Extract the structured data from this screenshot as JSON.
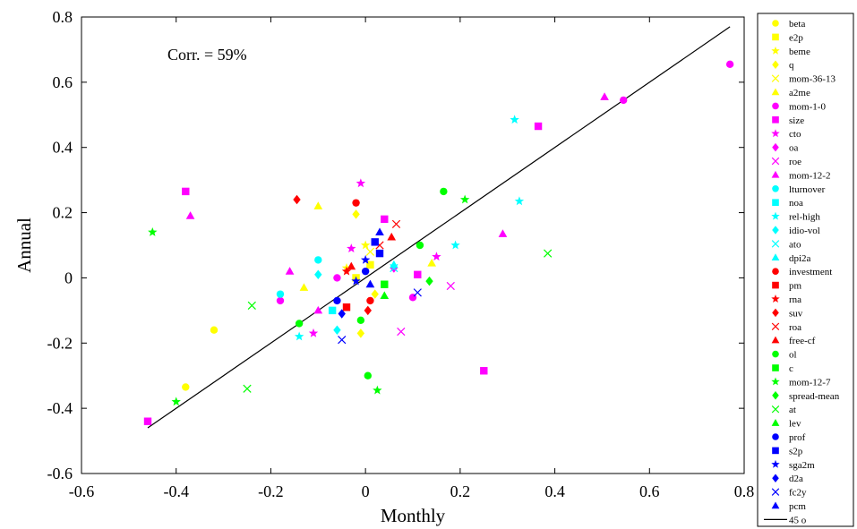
{
  "chart_data": {
    "type": "scatter",
    "xlabel": "Monthly",
    "ylabel": "Annual",
    "xlim": [
      -0.6,
      0.8
    ],
    "ylim": [
      -0.6,
      0.8
    ],
    "x_ticks": [
      "-0.6",
      "-0.4",
      "-0.2",
      "0",
      "0.2",
      "0.4",
      "0.6",
      "0.8"
    ],
    "y_ticks": [
      "-0.6",
      "-0.4",
      "-0.2",
      "0",
      "0.2",
      "0.4",
      "0.6",
      "0.8"
    ],
    "grid": false,
    "legend_placement": "outside-right",
    "annotation": "Corr. = 59%",
    "reference_line": {
      "label": "45 o",
      "from": [
        -0.46,
        -0.46
      ],
      "to": [
        0.77,
        0.77
      ],
      "color": "#000000"
    },
    "series": [
      {
        "name": "beta",
        "color": "#ffff00",
        "marker": "circle",
        "points": [
          [
            -0.38,
            -0.335
          ],
          [
            -0.32,
            -0.16
          ]
        ]
      },
      {
        "name": "e2p",
        "color": "#ffff00",
        "marker": "square",
        "points": [
          [
            -0.02,
            0.0
          ],
          [
            0.01,
            0.04
          ]
        ]
      },
      {
        "name": "beme",
        "color": "#ffff00",
        "marker": "star",
        "points": [
          [
            -0.04,
            0.03
          ],
          [
            0.0,
            0.1
          ]
        ]
      },
      {
        "name": "q",
        "color": "#ffff00",
        "marker": "diamond",
        "points": [
          [
            -0.02,
            0.195
          ],
          [
            -0.01,
            -0.17
          ],
          [
            0.02,
            -0.05
          ]
        ]
      },
      {
        "name": "mom-36-13",
        "color": "#ffff00",
        "marker": "x",
        "points": [
          [
            0.01,
            0.08
          ]
        ]
      },
      {
        "name": "a2me",
        "color": "#ffff00",
        "marker": "triangle",
        "points": [
          [
            -0.1,
            0.22
          ],
          [
            -0.13,
            -0.03
          ],
          [
            0.14,
            0.045
          ]
        ]
      },
      {
        "name": "mom-1-0",
        "color": "#ff00ff",
        "marker": "circle",
        "points": [
          [
            0.77,
            0.655
          ],
          [
            0.545,
            0.545
          ],
          [
            -0.18,
            -0.07
          ],
          [
            0.1,
            -0.06
          ],
          [
            -0.06,
            0.0
          ]
        ]
      },
      {
        "name": "size",
        "color": "#ff00ff",
        "marker": "square",
        "points": [
          [
            0.365,
            0.465
          ],
          [
            -0.38,
            0.265
          ],
          [
            -0.46,
            -0.44
          ],
          [
            0.25,
            -0.285
          ],
          [
            0.11,
            0.01
          ],
          [
            0.04,
            0.18
          ]
        ]
      },
      {
        "name": "cto",
        "color": "#ff00ff",
        "marker": "star",
        "points": [
          [
            -0.11,
            -0.17
          ],
          [
            0.15,
            0.065
          ],
          [
            -0.01,
            0.29
          ],
          [
            -0.03,
            0.09
          ]
        ]
      },
      {
        "name": "oa",
        "color": "#ff00ff",
        "marker": "diamond",
        "points": [
          [
            0.06,
            0.03
          ]
        ]
      },
      {
        "name": "roe",
        "color": "#ff00ff",
        "marker": "x",
        "points": [
          [
            0.18,
            -0.025
          ],
          [
            0.075,
            -0.165
          ]
        ]
      },
      {
        "name": "mom-12-2",
        "color": "#ff00ff",
        "marker": "triangle",
        "points": [
          [
            0.505,
            0.555
          ],
          [
            -0.37,
            0.19
          ],
          [
            0.29,
            0.135
          ],
          [
            -0.16,
            0.02
          ],
          [
            -0.1,
            -0.1
          ]
        ]
      },
      {
        "name": "lturnover",
        "color": "#00ffff",
        "marker": "circle",
        "points": [
          [
            -0.18,
            -0.05
          ],
          [
            -0.1,
            0.055
          ]
        ]
      },
      {
        "name": "noa",
        "color": "#00ffff",
        "marker": "square",
        "points": [
          [
            -0.07,
            -0.1
          ]
        ]
      },
      {
        "name": "rel-high",
        "color": "#00ffff",
        "marker": "star",
        "points": [
          [
            0.315,
            0.485
          ],
          [
            0.325,
            0.235
          ],
          [
            0.19,
            0.1
          ],
          [
            -0.14,
            -0.18
          ]
        ]
      },
      {
        "name": "idio-vol",
        "color": "#00ffff",
        "marker": "diamond",
        "points": [
          [
            -0.06,
            -0.16
          ],
          [
            -0.1,
            0.01
          ]
        ]
      },
      {
        "name": "ato",
        "color": "#00ffff",
        "marker": "x",
        "points": [
          [
            0.06,
            0.03
          ]
        ]
      },
      {
        "name": "dpi2a",
        "color": "#00ffff",
        "marker": "triangle",
        "points": [
          [
            0.06,
            0.04
          ]
        ]
      },
      {
        "name": "investment",
        "color": "#ff0000",
        "marker": "circle",
        "points": [
          [
            -0.02,
            0.23
          ],
          [
            0.01,
            -0.07
          ]
        ]
      },
      {
        "name": "pm",
        "color": "#ff0000",
        "marker": "square",
        "points": [
          [
            -0.04,
            -0.09
          ]
        ]
      },
      {
        "name": "rna",
        "color": "#ff0000",
        "marker": "star",
        "points": [
          [
            -0.04,
            0.02
          ]
        ]
      },
      {
        "name": "suv",
        "color": "#ff0000",
        "marker": "diamond",
        "points": [
          [
            -0.145,
            0.24
          ],
          [
            0.005,
            -0.1
          ]
        ]
      },
      {
        "name": "roa",
        "color": "#ff0000",
        "marker": "x",
        "points": [
          [
            0.065,
            0.165
          ],
          [
            0.03,
            0.1
          ]
        ]
      },
      {
        "name": "free-cf",
        "color": "#ff0000",
        "marker": "triangle",
        "points": [
          [
            0.055,
            0.125
          ],
          [
            -0.03,
            0.035
          ]
        ]
      },
      {
        "name": "ol",
        "color": "#00ff00",
        "marker": "circle",
        "points": [
          [
            0.165,
            0.265
          ],
          [
            0.005,
            -0.3
          ],
          [
            0.115,
            0.1
          ],
          [
            -0.14,
            -0.14
          ],
          [
            -0.01,
            -0.13
          ]
        ]
      },
      {
        "name": "c",
        "color": "#00ff00",
        "marker": "square",
        "points": [
          [
            0.04,
            -0.02
          ]
        ]
      },
      {
        "name": "mom-12-7",
        "color": "#00ff00",
        "marker": "star",
        "points": [
          [
            -0.45,
            0.14
          ],
          [
            -0.4,
            -0.38
          ],
          [
            0.21,
            0.24
          ],
          [
            0.025,
            -0.345
          ]
        ]
      },
      {
        "name": "spread-mean",
        "color": "#00ff00",
        "marker": "diamond",
        "points": [
          [
            0.135,
            -0.01
          ]
        ]
      },
      {
        "name": "at",
        "color": "#00ff00",
        "marker": "x",
        "points": [
          [
            -0.25,
            -0.34
          ],
          [
            0.385,
            0.075
          ],
          [
            -0.24,
            -0.085
          ]
        ]
      },
      {
        "name": "lev",
        "color": "#00ff00",
        "marker": "triangle",
        "points": [
          [
            0.04,
            -0.055
          ]
        ]
      },
      {
        "name": "prof",
        "color": "#0000ff",
        "marker": "circle",
        "points": [
          [
            -0.06,
            -0.07
          ],
          [
            0.0,
            0.02
          ]
        ]
      },
      {
        "name": "s2p",
        "color": "#0000ff",
        "marker": "square",
        "points": [
          [
            0.02,
            0.11
          ],
          [
            0.03,
            0.075
          ]
        ]
      },
      {
        "name": "sga2m",
        "color": "#0000ff",
        "marker": "star",
        "points": [
          [
            0.0,
            0.055
          ],
          [
            -0.02,
            -0.01
          ]
        ]
      },
      {
        "name": "d2a",
        "color": "#0000ff",
        "marker": "diamond",
        "points": [
          [
            -0.05,
            -0.11
          ]
        ]
      },
      {
        "name": "fc2y",
        "color": "#0000ff",
        "marker": "x",
        "points": [
          [
            -0.05,
            -0.19
          ],
          [
            0.11,
            -0.045
          ]
        ]
      },
      {
        "name": "pcm",
        "color": "#0000ff",
        "marker": "triangle",
        "points": [
          [
            0.03,
            0.14
          ],
          [
            0.01,
            -0.02
          ]
        ]
      }
    ]
  }
}
